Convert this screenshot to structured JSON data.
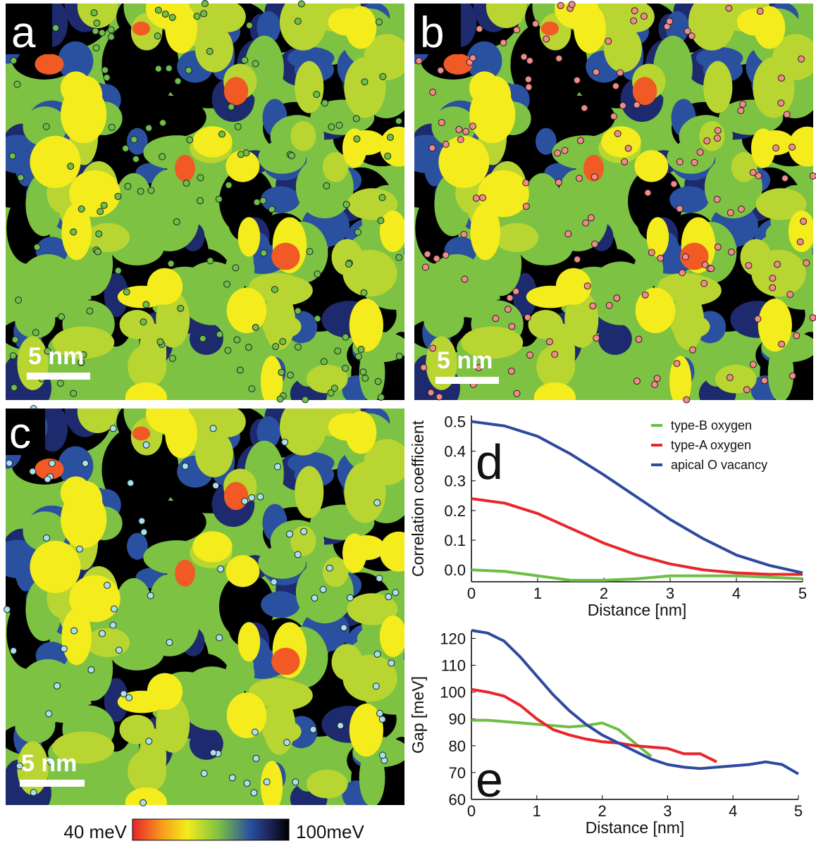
{
  "panels": [
    {
      "label": "a",
      "scale_bar": "5 nm"
    },
    {
      "label": "b",
      "scale_bar": "5 nm"
    },
    {
      "label": "c",
      "scale_bar": "5 nm"
    }
  ],
  "colorbar": {
    "min_label": "40 meV",
    "max_label": "100meV"
  },
  "chart_data": [
    {
      "type": "line",
      "annotation": "d",
      "x_label": "Distance [nm]",
      "y_label": "Correlation coefficient",
      "x": [
        0,
        0.5,
        1,
        1.5,
        2,
        2.5,
        3,
        3.5,
        4,
        4.5,
        5
      ],
      "series": [
        {
          "name": "type-B oxygen",
          "color": "#6cbf45",
          "values": [
            0.0,
            -0.005,
            -0.02,
            -0.035,
            -0.035,
            -0.03,
            -0.02,
            -0.02,
            -0.02,
            -0.025,
            -0.03
          ]
        },
        {
          "name": "type-A oxygen",
          "color": "#e8262b",
          "values": [
            0.24,
            0.225,
            0.19,
            0.14,
            0.09,
            0.05,
            0.02,
            0.0,
            -0.01,
            -0.015,
            -0.015
          ]
        },
        {
          "name": "apical O vacancy",
          "color": "#2e4a9e",
          "values": [
            0.5,
            0.485,
            0.45,
            0.39,
            0.32,
            0.245,
            0.17,
            0.105,
            0.05,
            0.015,
            -0.01
          ]
        }
      ],
      "xlim": [
        0,
        5
      ],
      "xticks": [
        0,
        1,
        2,
        3,
        4,
        5
      ],
      "ylim": [
        -0.04,
        0.52
      ],
      "yticks": [
        {
          "value": 0,
          "label": "0.0"
        },
        0.1,
        0.2,
        0.3,
        0.4,
        0.5
      ],
      "legend": "upper right"
    },
    {
      "type": "line",
      "annotation": "e",
      "x_label": "Distance [nm]",
      "y_label": "Gap [meV]",
      "x": [
        0,
        0.25,
        0.5,
        0.75,
        1,
        1.25,
        1.5,
        1.75,
        2,
        2.25,
        2.5,
        2.75,
        3,
        3.25,
        3.5,
        3.75,
        4,
        4.25,
        4.5,
        4.75,
        5
      ],
      "series": [
        {
          "name": "type-B oxygen",
          "color": "#6cbf45",
          "values": [
            89.5,
            89.5,
            89,
            88.5,
            88,
            87.5,
            87,
            87.5,
            88.5,
            86,
            81,
            76,
            null,
            null,
            null,
            null,
            null,
            null,
            null,
            null,
            null
          ]
        },
        {
          "name": "type-A oxygen",
          "color": "#e8262b",
          "values": [
            101,
            100,
            98.5,
            95,
            90,
            86,
            84,
            82.5,
            81.5,
            81,
            80,
            79.5,
            79,
            77,
            77,
            74,
            null,
            null,
            null,
            null,
            null
          ]
        },
        {
          "name": "apical O vacancy",
          "color": "#2e4a9e",
          "values": [
            123,
            122,
            119,
            113,
            106,
            99,
            93,
            88,
            84,
            81,
            78,
            75,
            73,
            72,
            71.5,
            72,
            72.5,
            73,
            74,
            73,
            69.5
          ]
        }
      ],
      "xlim": [
        0,
        5
      ],
      "xticks": [
        0,
        1,
        2,
        3,
        4,
        5
      ],
      "ylim": [
        60,
        123
      ],
      "yticks": [
        60,
        70,
        80,
        90,
        100,
        110,
        120
      ]
    }
  ]
}
